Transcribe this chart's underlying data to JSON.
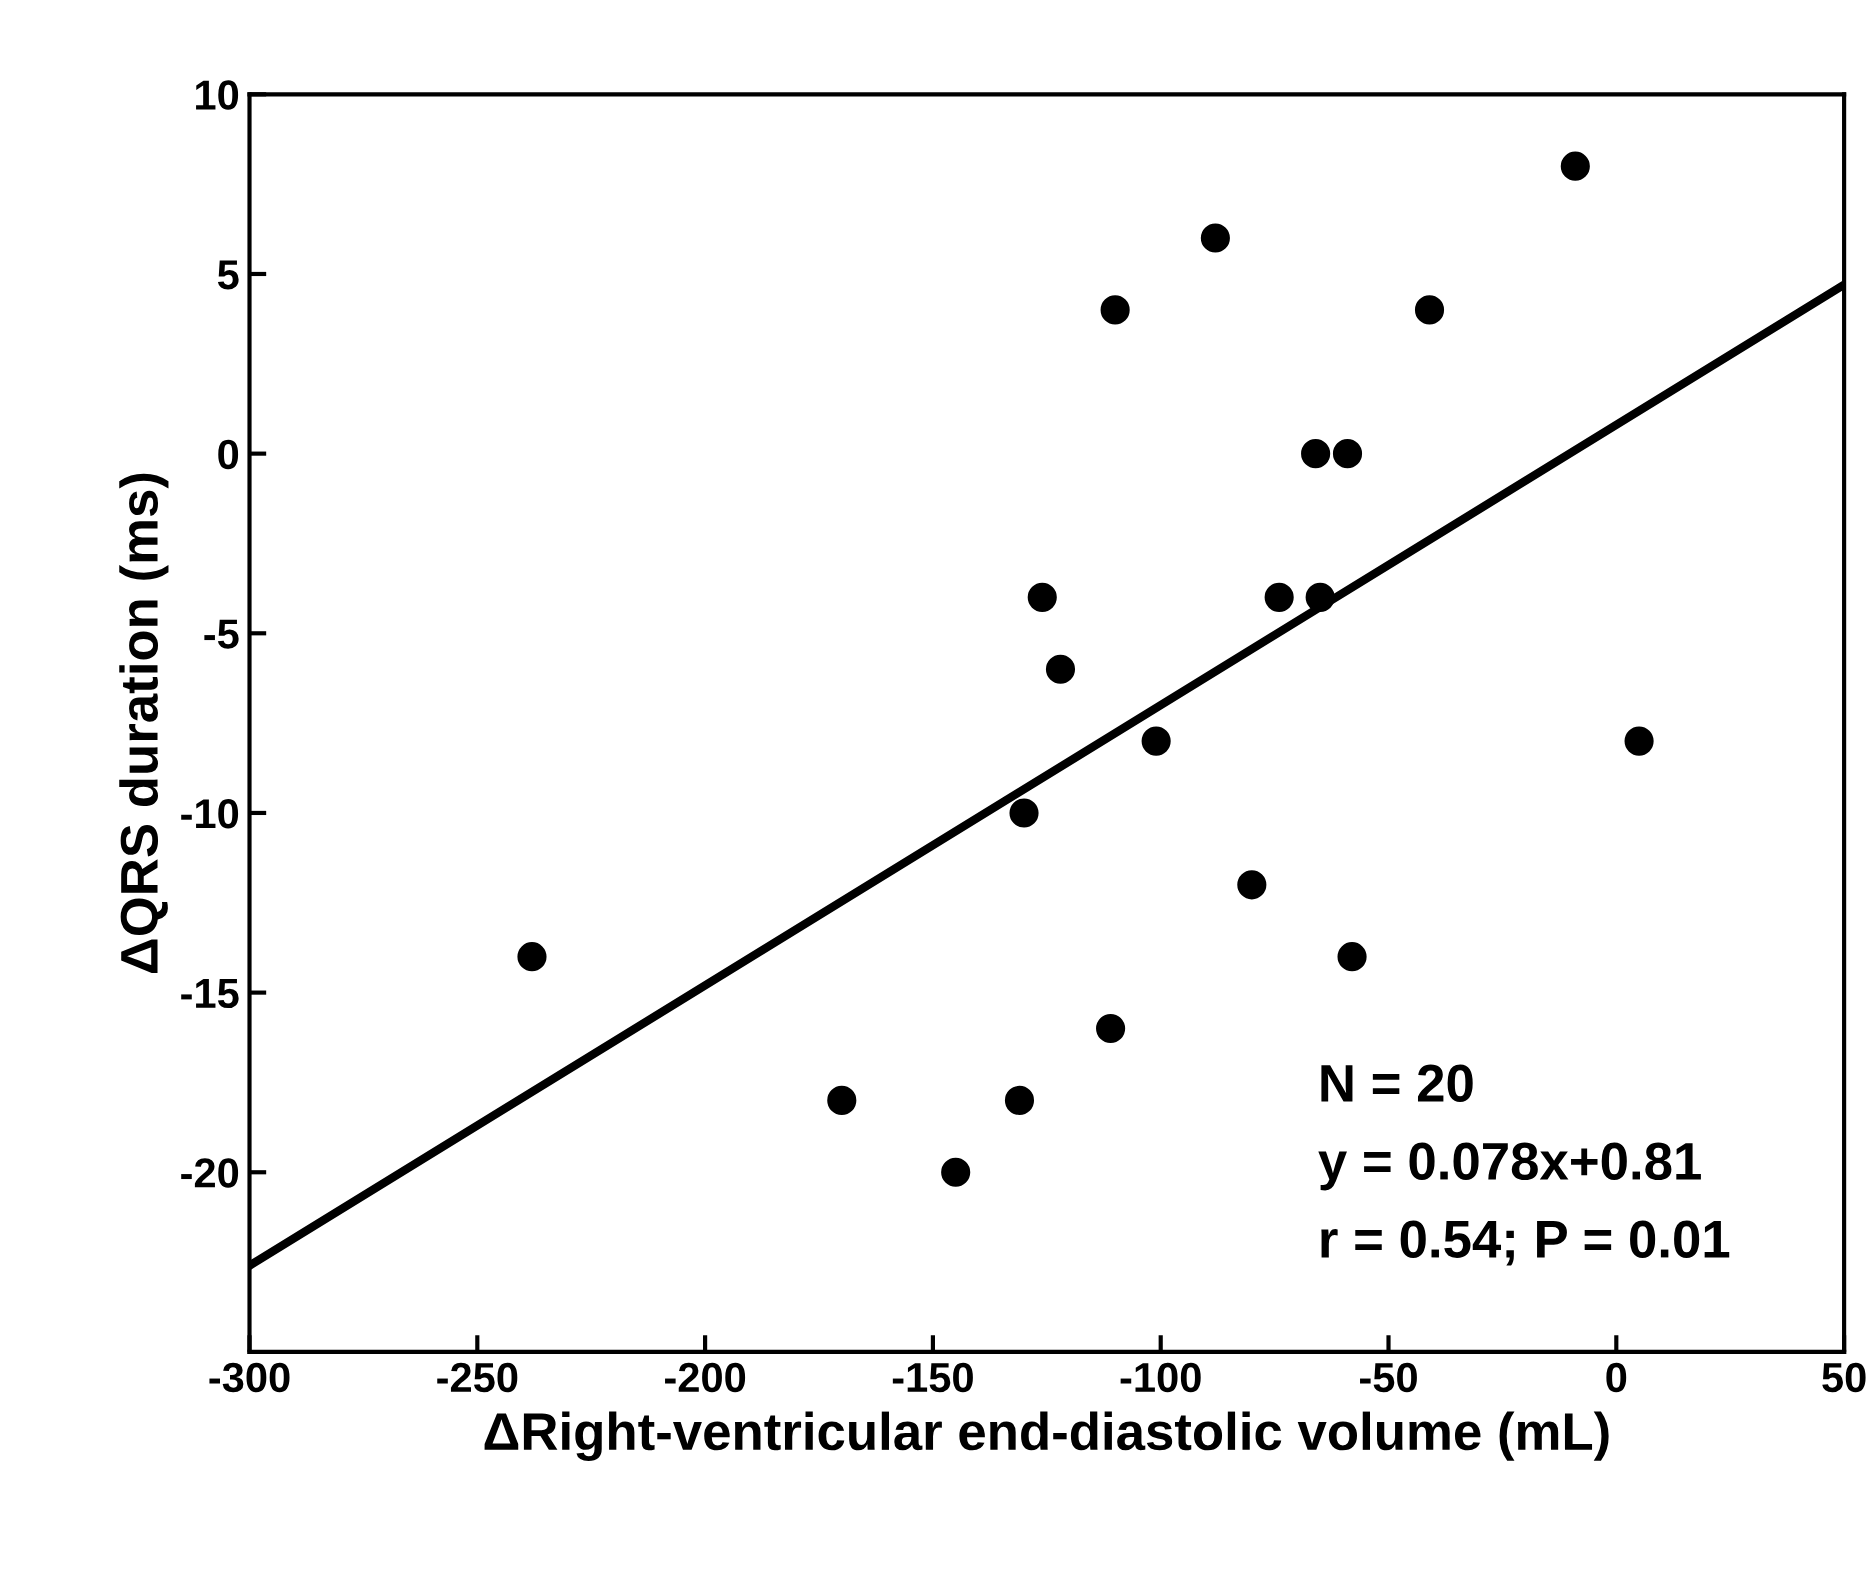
{
  "chart_data": {
    "type": "scatter",
    "xlabel": "ΔRight-ventricular end-diastolic volume (mL)",
    "ylabel": "ΔQRS duration (ms)",
    "xlim": [
      -300,
      50
    ],
    "ylim": [
      -25,
      10
    ],
    "xticks": [
      -300,
      -250,
      -200,
      -150,
      -100,
      -50,
      0,
      50
    ],
    "yticks": [
      -20,
      -15,
      -10,
      -5,
      0,
      5,
      10
    ],
    "grid": false,
    "series": [
      {
        "marker": "circle",
        "color": "#000000",
        "x": [
          -238,
          -170,
          -145,
          -131,
          -130,
          -126,
          -122,
          -111,
          -110,
          -101,
          -88,
          -80,
          -74,
          -66,
          -65,
          -59,
          -58,
          -41,
          -9,
          5
        ],
        "values": [
          -14,
          -18,
          -20,
          -18,
          -10,
          -4,
          -6,
          -16,
          4,
          -8,
          6,
          -12,
          -4,
          0,
          -4,
          0,
          -14,
          4,
          8,
          -8
        ]
      },
      {
        "type": "line",
        "color": "#000000",
        "x": [
          -300,
          50
        ],
        "values": [
          -22.6,
          4.7
        ]
      }
    ],
    "annotations": [
      "N = 20",
      "y = 0.078x+0.81",
      "r = 0.54; P = 0.01"
    ]
  }
}
